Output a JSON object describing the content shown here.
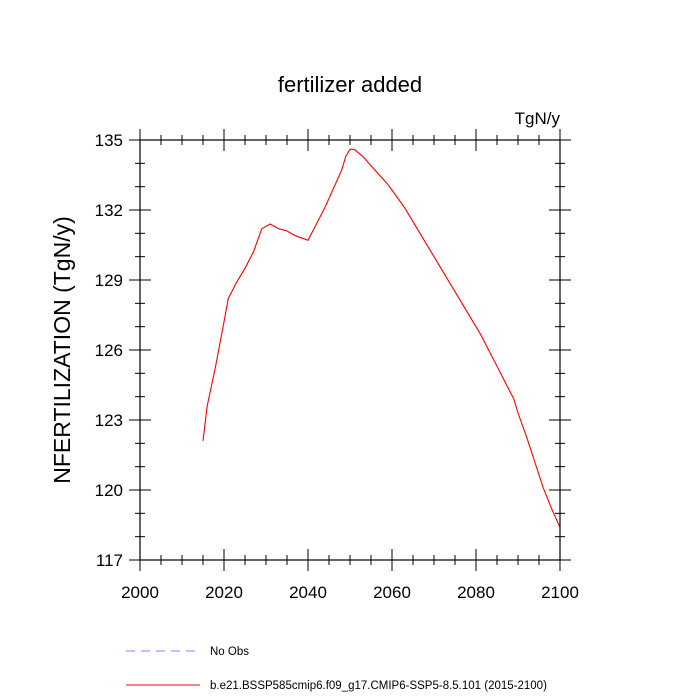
{
  "chart_data": {
    "type": "line",
    "title": "fertilizer added",
    "units_label": "TgN/y",
    "xlabel": "",
    "ylabel": "NFERTILIZATION  (TgN/y)",
    "xlim": [
      2000,
      2100
    ],
    "ylim": [
      117,
      135
    ],
    "x_ticks": [
      2000,
      2020,
      2040,
      2060,
      2080,
      2100
    ],
    "x_tick_labels": [
      "2000",
      "2020",
      "2040",
      "2060",
      "2080",
      "2100"
    ],
    "y_ticks": [
      117,
      120,
      123,
      126,
      129,
      132,
      135
    ],
    "y_tick_labels": [
      "117",
      "120",
      "123",
      "126",
      "129",
      "132",
      "135"
    ],
    "grid": false,
    "legend_position": "bottom",
    "series": [
      {
        "name": "No Obs",
        "color": "#8080ff",
        "style": "dashed",
        "x": [],
        "y": []
      },
      {
        "name": "b.e21.BSSP585cmip6.f09_g17.CMIP6-SSP5-8.5.101 (2015-2100)",
        "color": "#ff0000",
        "style": "solid",
        "x": [
          2015,
          2016,
          2018,
          2020,
          2021,
          2023,
          2025,
          2027,
          2029,
          2031,
          2033,
          2035,
          2037,
          2040,
          2042,
          2044,
          2046,
          2048,
          2049,
          2050,
          2051,
          2053,
          2055,
          2057,
          2059,
          2061,
          2063,
          2065,
          2067,
          2069,
          2071,
          2073,
          2075,
          2077,
          2079,
          2081,
          2083,
          2085,
          2087,
          2089,
          2090,
          2092,
          2094,
          2096,
          2098,
          2100
        ],
        "y": [
          122.1,
          123.6,
          125.3,
          127.2,
          128.2,
          128.9,
          129.5,
          130.2,
          131.2,
          131.4,
          131.2,
          131.1,
          130.9,
          130.7,
          131.4,
          132.1,
          132.9,
          133.7,
          134.3,
          134.6,
          134.6,
          134.3,
          133.9,
          133.5,
          133.1,
          132.6,
          132.1,
          131.5,
          130.9,
          130.3,
          129.7,
          129.1,
          128.5,
          127.9,
          127.3,
          126.7,
          126.0,
          125.3,
          124.6,
          123.9,
          123.3,
          122.3,
          121.2,
          120.1,
          119.2,
          118.4
        ]
      }
    ]
  }
}
